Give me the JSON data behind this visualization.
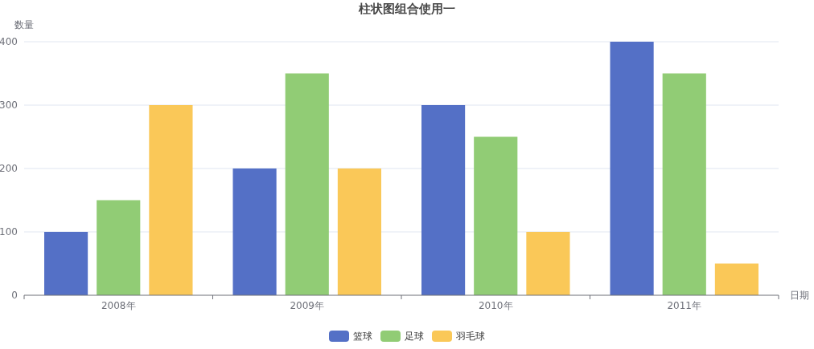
{
  "chart_data": {
    "type": "bar",
    "title": "柱状图组合使用一",
    "xlabel": "日期",
    "ylabel": "数量",
    "categories": [
      "2008年",
      "2009年",
      "2010年",
      "2011年"
    ],
    "series": [
      {
        "name": "篮球",
        "color": "#5470c6",
        "values": [
          100,
          200,
          300,
          400
        ]
      },
      {
        "name": "足球",
        "color": "#91cc75",
        "values": [
          150,
          350,
          250,
          350
        ]
      },
      {
        "name": "羽毛球",
        "color": "#fac858",
        "values": [
          300,
          200,
          100,
          50
        ]
      }
    ],
    "ylim": [
      0,
      400
    ],
    "yticks": [
      0,
      100,
      200,
      300,
      400
    ],
    "grid": "y",
    "legend": "bottom"
  }
}
